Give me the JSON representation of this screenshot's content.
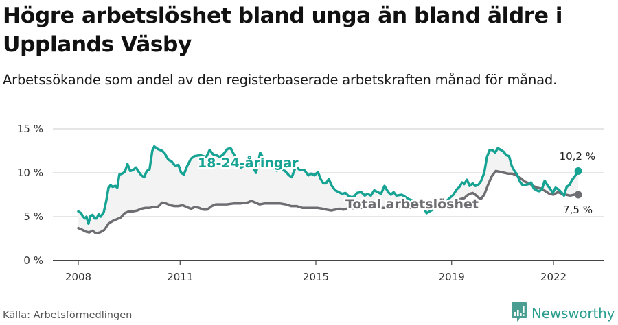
{
  "header": {
    "title": "Högre arbetslöshet bland unga än bland äldre i Upplands Väsby",
    "subtitle": "Arbetssökande som andel av den registerbaserade arbetskraften månad för månad."
  },
  "footer": {
    "source": "Källa: Arbetsförmedlingen",
    "brand": "Newsworthy",
    "brand_icon": "bar-chart-speech-bubble-icon"
  },
  "colors": {
    "youth": "#16a394",
    "total": "#6e6d72",
    "grid": "#dddddd",
    "axis": "#444444",
    "fill": "#f3f3f3",
    "brand": "#2a9d8f"
  },
  "chart_data": {
    "type": "line",
    "title": "Högre arbetslöshet bland unga än bland äldre i Upplands Väsby",
    "subtitle": "Arbetssökande som andel av den registerbaserade arbetskraften månad för månad.",
    "xlabel": "",
    "ylabel": "",
    "ylim": [
      0,
      15
    ],
    "xlim": [
      2008.0,
      2022.75
    ],
    "y_ticks": [
      0,
      5,
      10,
      15
    ],
    "y_tick_labels": [
      "0 %",
      "5 %",
      "10 %",
      "15 %"
    ],
    "x_ticks": [
      2008,
      2011,
      2015,
      2019,
      2022
    ],
    "x_tick_labels": [
      "2008",
      "2011",
      "2015",
      "2019",
      "2022"
    ],
    "grid": "horizontal",
    "legend": "inline labels",
    "annotations": [
      {
        "text": "18-24-åringar",
        "series": "18-24-åringar"
      },
      {
        "text": "Total arbetslöshet",
        "series": "Total arbetslöshet"
      },
      {
        "text": "10,2 %",
        "series": "18-24-åringar",
        "position": "last"
      },
      {
        "text": "7,5 %",
        "series": "Total arbetslöshet",
        "position": "last"
      }
    ],
    "series": [
      {
        "name": "18-24-åringar",
        "color": "#16a394",
        "end_label": "10,2 %",
        "points": [
          [
            2008.0,
            5.6
          ],
          [
            2008.08,
            5.4
          ],
          [
            2008.14,
            5.0
          ],
          [
            2008.2,
            4.8
          ],
          [
            2008.24,
            5.0
          ],
          [
            2008.3,
            4.2
          ],
          [
            2008.36,
            5.1
          ],
          [
            2008.42,
            5.2
          ],
          [
            2008.48,
            4.8
          ],
          [
            2008.54,
            4.8
          ],
          [
            2008.6,
            5.3
          ],
          [
            2008.66,
            5.0
          ],
          [
            2008.75,
            5.5
          ],
          [
            2008.83,
            6.9
          ],
          [
            2008.89,
            8.3
          ],
          [
            2008.95,
            8.6
          ],
          [
            2009.01,
            8.4
          ],
          [
            2009.09,
            8.5
          ],
          [
            2009.15,
            8.3
          ],
          [
            2009.21,
            9.8
          ],
          [
            2009.29,
            9.9
          ],
          [
            2009.37,
            10.1
          ],
          [
            2009.45,
            11.0
          ],
          [
            2009.53,
            10.2
          ],
          [
            2009.61,
            10.3
          ],
          [
            2009.7,
            10.6
          ],
          [
            2009.78,
            10.1
          ],
          [
            2009.86,
            9.7
          ],
          [
            2009.94,
            9.5
          ],
          [
            2010.02,
            10.2
          ],
          [
            2010.1,
            10.4
          ],
          [
            2010.18,
            12.5
          ],
          [
            2010.24,
            13.0
          ],
          [
            2010.34,
            12.7
          ],
          [
            2010.47,
            12.5
          ],
          [
            2010.55,
            12.2
          ],
          [
            2010.65,
            11.5
          ],
          [
            2010.75,
            11.3
          ],
          [
            2010.85,
            10.8
          ],
          [
            2010.95,
            10.9
          ],
          [
            2011.03,
            10.0
          ],
          [
            2011.11,
            9.8
          ],
          [
            2011.21,
            10.8
          ],
          [
            2011.32,
            11.6
          ],
          [
            2011.42,
            11.9
          ],
          [
            2011.6,
            12.0
          ],
          [
            2011.77,
            11.8
          ],
          [
            2011.87,
            12.6
          ],
          [
            2011.97,
            12.1
          ],
          [
            2012.07,
            12.0
          ],
          [
            2012.17,
            11.8
          ],
          [
            2012.27,
            12.1
          ],
          [
            2012.39,
            12.7
          ],
          [
            2012.49,
            12.8
          ],
          [
            2012.57,
            12.2
          ],
          [
            2012.67,
            11.5
          ],
          [
            2012.79,
            10.6
          ],
          [
            2012.91,
            10.8
          ],
          [
            2013.04,
            11.2
          ],
          [
            2013.16,
            10.5
          ],
          [
            2013.24,
            10.0
          ],
          [
            2013.36,
            12.3
          ],
          [
            2013.48,
            11.5
          ],
          [
            2013.6,
            11.0
          ],
          [
            2013.73,
            10.6
          ],
          [
            2013.85,
            10.2
          ],
          [
            2013.97,
            10.4
          ],
          [
            2014.09,
            10.2
          ],
          [
            2014.21,
            9.7
          ],
          [
            2014.29,
            9.5
          ],
          [
            2014.41,
            10.7
          ],
          [
            2014.53,
            10.3
          ],
          [
            2014.66,
            10.3
          ],
          [
            2014.78,
            9.7
          ],
          [
            2014.86,
            9.9
          ],
          [
            2014.96,
            9.7
          ],
          [
            2015.06,
            10.1
          ],
          [
            2015.14,
            9.3
          ],
          [
            2015.22,
            8.8
          ],
          [
            2015.3,
            8.8
          ],
          [
            2015.38,
            9.3
          ],
          [
            2015.47,
            8.5
          ],
          [
            2015.57,
            8.0
          ],
          [
            2015.67,
            7.8
          ],
          [
            2015.77,
            7.6
          ],
          [
            2015.87,
            7.7
          ],
          [
            2015.95,
            7.4
          ],
          [
            2016.05,
            7.2
          ],
          [
            2016.13,
            7.3
          ],
          [
            2016.21,
            7.7
          ],
          [
            2016.34,
            7.8
          ],
          [
            2016.44,
            7.4
          ],
          [
            2016.52,
            7.6
          ],
          [
            2016.62,
            7.4
          ],
          [
            2016.72,
            8.0
          ],
          [
            2016.82,
            7.8
          ],
          [
            2016.92,
            7.6
          ],
          [
            2017.02,
            8.5
          ],
          [
            2017.13,
            7.8
          ],
          [
            2017.21,
            7.5
          ],
          [
            2017.29,
            7.8
          ],
          [
            2017.37,
            7.4
          ],
          [
            2017.53,
            7.5
          ],
          [
            2017.73,
            7.0
          ],
          [
            2017.94,
            6.7
          ],
          [
            2018.14,
            6.3
          ],
          [
            2018.26,
            5.4
          ],
          [
            2018.44,
            5.8
          ],
          [
            2018.64,
            6.2
          ],
          [
            2018.85,
            6.8
          ],
          [
            2019.05,
            7.5
          ],
          [
            2019.15,
            8.1
          ],
          [
            2019.23,
            8.4
          ],
          [
            2019.31,
            8.9
          ],
          [
            2019.37,
            8.7
          ],
          [
            2019.45,
            9.2
          ],
          [
            2019.53,
            8.5
          ],
          [
            2019.62,
            8.8
          ],
          [
            2019.7,
            8.5
          ],
          [
            2019.78,
            8.6
          ],
          [
            2019.86,
            9.0
          ],
          [
            2019.96,
            10.0
          ],
          [
            2020.04,
            11.8
          ],
          [
            2020.12,
            12.6
          ],
          [
            2020.2,
            12.6
          ],
          [
            2020.28,
            12.3
          ],
          [
            2020.36,
            12.8
          ],
          [
            2020.45,
            12.6
          ],
          [
            2020.53,
            12.4
          ],
          [
            2020.61,
            12.0
          ],
          [
            2020.69,
            11.9
          ],
          [
            2020.77,
            10.8
          ],
          [
            2020.85,
            10.2
          ],
          [
            2020.93,
            9.8
          ],
          [
            2021.01,
            9.0
          ],
          [
            2021.09,
            8.6
          ],
          [
            2021.17,
            8.6
          ],
          [
            2021.26,
            8.7
          ],
          [
            2021.34,
            8.9
          ],
          [
            2021.42,
            8.2
          ],
          [
            2021.5,
            8.0
          ],
          [
            2021.58,
            7.9
          ],
          [
            2021.66,
            8.1
          ],
          [
            2021.74,
            9.1
          ],
          [
            2021.82,
            8.6
          ],
          [
            2021.9,
            8.2
          ],
          [
            2021.98,
            7.7
          ],
          [
            2022.06,
            8.3
          ],
          [
            2022.15,
            8.1
          ],
          [
            2022.23,
            7.8
          ],
          [
            2022.31,
            7.4
          ],
          [
            2022.39,
            8.4
          ],
          [
            2022.47,
            8.6
          ],
          [
            2022.55,
            9.2
          ],
          [
            2022.63,
            9.6
          ],
          [
            2022.73,
            10.2
          ]
        ]
      },
      {
        "name": "Total arbetslöshet",
        "color": "#6e6d72",
        "end_label": "7,5 %",
        "points": [
          [
            2008.0,
            3.7
          ],
          [
            2008.12,
            3.5
          ],
          [
            2008.22,
            3.3
          ],
          [
            2008.32,
            3.2
          ],
          [
            2008.42,
            3.4
          ],
          [
            2008.52,
            3.1
          ],
          [
            2008.64,
            3.2
          ],
          [
            2008.77,
            3.5
          ],
          [
            2008.89,
            4.2
          ],
          [
            2009.01,
            4.5
          ],
          [
            2009.13,
            4.7
          ],
          [
            2009.25,
            4.9
          ],
          [
            2009.37,
            5.4
          ],
          [
            2009.49,
            5.6
          ],
          [
            2009.61,
            5.6
          ],
          [
            2009.74,
            5.7
          ],
          [
            2009.86,
            5.9
          ],
          [
            2009.98,
            6.0
          ],
          [
            2010.1,
            6.0
          ],
          [
            2010.22,
            6.1
          ],
          [
            2010.34,
            6.1
          ],
          [
            2010.47,
            6.6
          ],
          [
            2010.59,
            6.5
          ],
          [
            2010.71,
            6.3
          ],
          [
            2010.83,
            6.2
          ],
          [
            2010.95,
            6.2
          ],
          [
            2011.07,
            6.3
          ],
          [
            2011.19,
            6.1
          ],
          [
            2011.32,
            5.9
          ],
          [
            2011.44,
            6.1
          ],
          [
            2011.56,
            6.0
          ],
          [
            2011.68,
            5.8
          ],
          [
            2011.8,
            5.8
          ],
          [
            2011.93,
            6.2
          ],
          [
            2012.05,
            6.4
          ],
          [
            2012.17,
            6.4
          ],
          [
            2012.37,
            6.4
          ],
          [
            2012.57,
            6.5
          ],
          [
            2012.77,
            6.5
          ],
          [
            2012.98,
            6.6
          ],
          [
            2013.1,
            6.8
          ],
          [
            2013.22,
            6.6
          ],
          [
            2013.34,
            6.4
          ],
          [
            2013.48,
            6.5
          ],
          [
            2013.63,
            6.5
          ],
          [
            2013.79,
            6.5
          ],
          [
            2013.95,
            6.5
          ],
          [
            2014.11,
            6.4
          ],
          [
            2014.27,
            6.2
          ],
          [
            2014.43,
            6.2
          ],
          [
            2014.6,
            6.0
          ],
          [
            2014.76,
            6.0
          ],
          [
            2014.92,
            6.0
          ],
          [
            2015.04,
            6.0
          ],
          [
            2015.2,
            5.9
          ],
          [
            2015.32,
            5.8
          ],
          [
            2015.45,
            5.7
          ],
          [
            2015.57,
            5.8
          ],
          [
            2015.69,
            5.9
          ],
          [
            2015.81,
            5.8
          ],
          [
            2015.91,
            5.9
          ],
          [
            2016.21,
            6.0
          ],
          [
            2016.62,
            6.0
          ],
          [
            2017.02,
            6.0
          ],
          [
            2017.43,
            6.0
          ],
          [
            2017.83,
            6.0
          ],
          [
            2018.24,
            6.1
          ],
          [
            2018.64,
            6.2
          ],
          [
            2019.05,
            6.6
          ],
          [
            2019.25,
            7.0
          ],
          [
            2019.37,
            7.1
          ],
          [
            2019.45,
            7.4
          ],
          [
            2019.53,
            7.6
          ],
          [
            2019.62,
            7.7
          ],
          [
            2019.7,
            7.5
          ],
          [
            2019.78,
            7.2
          ],
          [
            2019.86,
            7.0
          ],
          [
            2019.96,
            7.5
          ],
          [
            2020.06,
            8.5
          ],
          [
            2020.18,
            9.6
          ],
          [
            2020.3,
            10.2
          ],
          [
            2020.43,
            10.1
          ],
          [
            2020.55,
            10.0
          ],
          [
            2020.67,
            9.9
          ],
          [
            2020.79,
            9.9
          ],
          [
            2020.91,
            9.7
          ],
          [
            2021.03,
            9.4
          ],
          [
            2021.15,
            9.0
          ],
          [
            2021.28,
            8.8
          ],
          [
            2021.4,
            8.5
          ],
          [
            2021.52,
            8.3
          ],
          [
            2021.64,
            8.2
          ],
          [
            2021.76,
            7.9
          ],
          [
            2021.88,
            7.6
          ],
          [
            2022.0,
            7.5
          ],
          [
            2022.13,
            7.8
          ],
          [
            2022.25,
            7.6
          ],
          [
            2022.37,
            7.5
          ],
          [
            2022.49,
            7.4
          ],
          [
            2022.61,
            7.5
          ],
          [
            2022.73,
            7.5
          ]
        ]
      }
    ]
  }
}
